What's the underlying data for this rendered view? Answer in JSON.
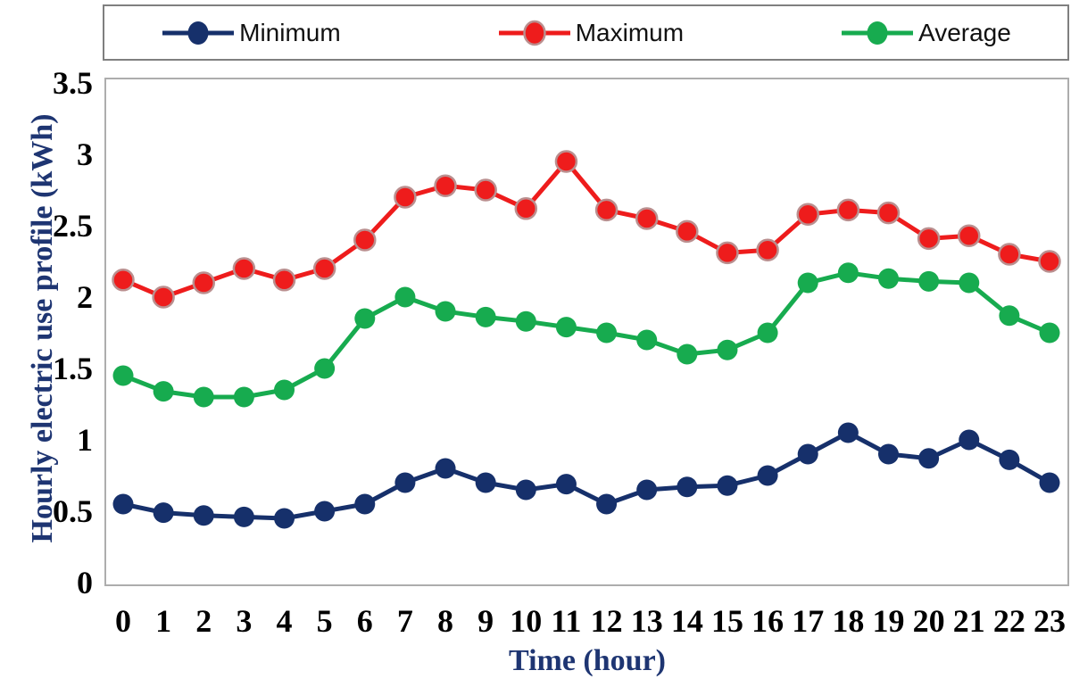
{
  "chart_data": {
    "type": "line",
    "title": "",
    "xlabel": "Time (hour)",
    "ylabel": "Hourly electric use profile (kWh)",
    "x": [
      0,
      1,
      2,
      3,
      4,
      5,
      6,
      7,
      8,
      9,
      10,
      11,
      12,
      13,
      14,
      15,
      16,
      17,
      18,
      19,
      20,
      21,
      22,
      23
    ],
    "xticks": [
      "0",
      "1",
      "2",
      "3",
      "4",
      "5",
      "6",
      "7",
      "8",
      "9",
      "10",
      "11",
      "12",
      "13",
      "14",
      "15",
      "16",
      "17",
      "18",
      "19",
      "20",
      "21",
      "22",
      "23"
    ],
    "ylim": [
      0,
      3.5
    ],
    "yticks": [
      0,
      0.5,
      1,
      1.5,
      2,
      2.5,
      3,
      3.5
    ],
    "ytick_labels": [
      "0",
      "0.5",
      "1",
      "1.5",
      "2",
      "2.5",
      "3",
      "3.5"
    ],
    "grid": false,
    "legend_position": "top",
    "series": [
      {
        "name": "Minimum",
        "color": "#16306b",
        "marker_outline": "",
        "values": [
          0.55,
          0.49,
          0.47,
          0.46,
          0.45,
          0.5,
          0.55,
          0.7,
          0.8,
          0.7,
          0.65,
          0.69,
          0.55,
          0.65,
          0.67,
          0.68,
          0.75,
          0.9,
          1.05,
          0.9,
          0.87,
          1.0,
          0.86,
          0.7
        ]
      },
      {
        "name": "Maximum",
        "color": "#ee1c1c",
        "marker_outline": "#ba8f8f",
        "values": [
          2.12,
          2.0,
          2.1,
          2.2,
          2.12,
          2.2,
          2.4,
          2.7,
          2.78,
          2.75,
          2.62,
          2.95,
          2.61,
          2.55,
          2.46,
          2.31,
          2.33,
          2.58,
          2.61,
          2.59,
          2.41,
          2.43,
          2.3,
          2.25
        ]
      },
      {
        "name": "Average",
        "color": "#17ab4f",
        "marker_outline": "",
        "values": [
          1.45,
          1.34,
          1.3,
          1.3,
          1.35,
          1.5,
          1.85,
          2.0,
          1.9,
          1.86,
          1.83,
          1.79,
          1.75,
          1.7,
          1.6,
          1.63,
          1.75,
          2.1,
          2.17,
          2.13,
          2.11,
          2.1,
          1.87,
          1.75
        ]
      }
    ],
    "style": {
      "plot_border_color": "#adadad",
      "legend_border_color": "#7f7f7f",
      "tick_label_color": "#000000",
      "axis_title_color": "#1e3572",
      "background": "#ffffff"
    }
  }
}
